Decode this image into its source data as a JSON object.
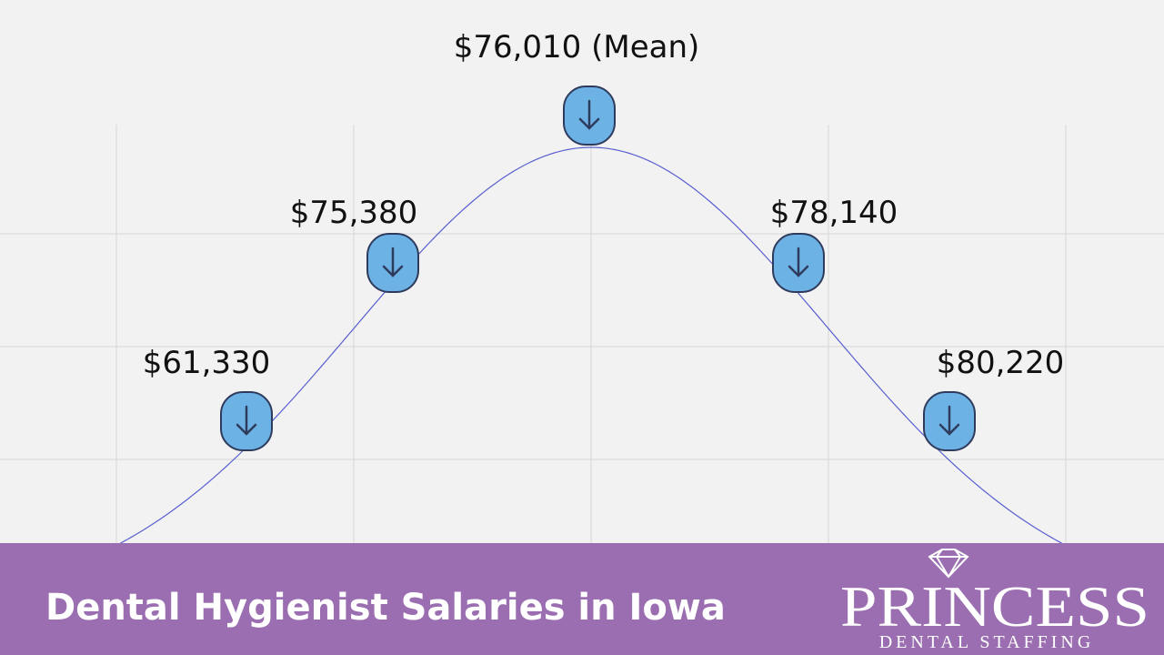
{
  "salaries": [
    {
      "label": "$61,330"
    },
    {
      "label": "$75,380"
    },
    {
      "label": "$76,010 (Mean)"
    },
    {
      "label": "$78,140"
    },
    {
      "label": "$80,220"
    }
  ],
  "banner": {
    "title": "Dental Hygienist Salaries in Iowa"
  },
  "logo": {
    "name": "PRINCESS",
    "tagline": "DENTAL STAFFING"
  }
}
